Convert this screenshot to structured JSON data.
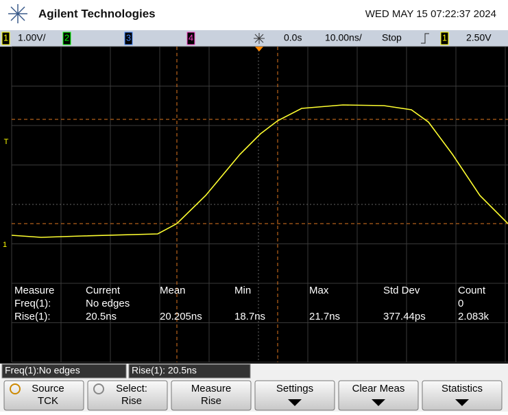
{
  "header": {
    "brand": "Agilent Technologies",
    "datetime": "WED MAY 15 07:22:37 2024"
  },
  "status_bar": {
    "ch1": "1",
    "ch1_scale": "1.00V/",
    "ch2": "2",
    "ch3": "3",
    "ch4": "4",
    "time_offset": "0.0s",
    "time_scale": "10.00ns/",
    "run_state": "Stop",
    "trigger_channel": "1",
    "trigger_level": "2.50V"
  },
  "markers": {
    "trigger": "T",
    "ground": "1"
  },
  "measurements": {
    "headers": [
      "Measure",
      "Current",
      "Mean",
      "Min",
      "Max",
      "Std Dev",
      "Count"
    ],
    "rows": [
      {
        "label": "Freq(1):",
        "current": "No edges",
        "count": "0"
      },
      {
        "label": "Rise(1):",
        "current": "20.5ns",
        "mean": "20.205ns",
        "min": "18.7ns",
        "max": "21.7ns",
        "std_dev": "377.44ps",
        "count": "2.083k"
      }
    ]
  },
  "summary_boxes": [
    "Freq(1):No edges",
    "Rise(1): 20.5ns"
  ],
  "softkeys": [
    {
      "label": "Source",
      "value": "TCK"
    },
    {
      "label": "Select:",
      "value": "Rise"
    },
    {
      "label": "Measure",
      "value": "Rise"
    },
    {
      "label": "Settings"
    },
    {
      "label": "Clear Meas"
    },
    {
      "label": "Statistics"
    }
  ]
}
